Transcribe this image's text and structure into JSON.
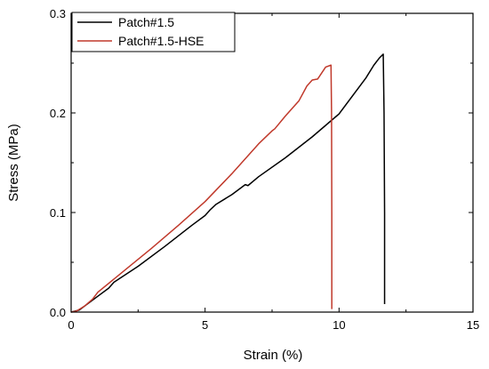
{
  "chart_data": {
    "type": "line",
    "xlabel": "Strain (%)",
    "ylabel": "Stress (MPa)",
    "xlim": [
      0,
      15
    ],
    "ylim": [
      0,
      0.3
    ],
    "x_ticks": [
      0,
      5,
      10,
      15
    ],
    "x_tick_labels": [
      "0",
      "5",
      "10",
      "15"
    ],
    "y_ticks": [
      0.0,
      0.1,
      0.2,
      0.3
    ],
    "y_tick_labels": [
      "0.0",
      "0.1",
      "0.2",
      "0.3"
    ],
    "grid": false,
    "legend_position": "top-left",
    "series": [
      {
        "name": "Patch#1.5",
        "color": "#000000",
        "points": [
          [
            0,
            0
          ],
          [
            0.3,
            0.002
          ],
          [
            0.6,
            0.008
          ],
          [
            1.0,
            0.016
          ],
          [
            1.4,
            0.024
          ],
          [
            1.6,
            0.03
          ],
          [
            2.5,
            0.046
          ],
          [
            3.5,
            0.066
          ],
          [
            4.5,
            0.087
          ],
          [
            5.0,
            0.097
          ],
          [
            5.2,
            0.103
          ],
          [
            5.4,
            0.108
          ],
          [
            6.0,
            0.118
          ],
          [
            6.5,
            0.128
          ],
          [
            6.6,
            0.127
          ],
          [
            7.0,
            0.136
          ],
          [
            8.0,
            0.155
          ],
          [
            9.0,
            0.176
          ],
          [
            10.0,
            0.199
          ],
          [
            11.0,
            0.235
          ],
          [
            11.3,
            0.248
          ],
          [
            11.5,
            0.255
          ],
          [
            11.65,
            0.259
          ],
          [
            11.68,
            0.2
          ],
          [
            11.7,
            0.1
          ],
          [
            11.7,
            0.008
          ]
        ]
      },
      {
        "name": "Patch#1.5-HSE",
        "color": "#c0392b",
        "points": [
          [
            0,
            0
          ],
          [
            0.2,
            0.001
          ],
          [
            0.5,
            0.006
          ],
          [
            0.8,
            0.013
          ],
          [
            1.0,
            0.02
          ],
          [
            2.0,
            0.042
          ],
          [
            3.0,
            0.064
          ],
          [
            4.0,
            0.087
          ],
          [
            5.0,
            0.111
          ],
          [
            6.0,
            0.139
          ],
          [
            7.0,
            0.169
          ],
          [
            7.5,
            0.182
          ],
          [
            7.6,
            0.184
          ],
          [
            8.0,
            0.197
          ],
          [
            8.5,
            0.212
          ],
          [
            8.8,
            0.227
          ],
          [
            9.0,
            0.233
          ],
          [
            9.2,
            0.234
          ],
          [
            9.5,
            0.246
          ],
          [
            9.7,
            0.248
          ],
          [
            9.72,
            0.2
          ],
          [
            9.73,
            0.1
          ],
          [
            9.73,
            0.003
          ]
        ]
      }
    ]
  }
}
